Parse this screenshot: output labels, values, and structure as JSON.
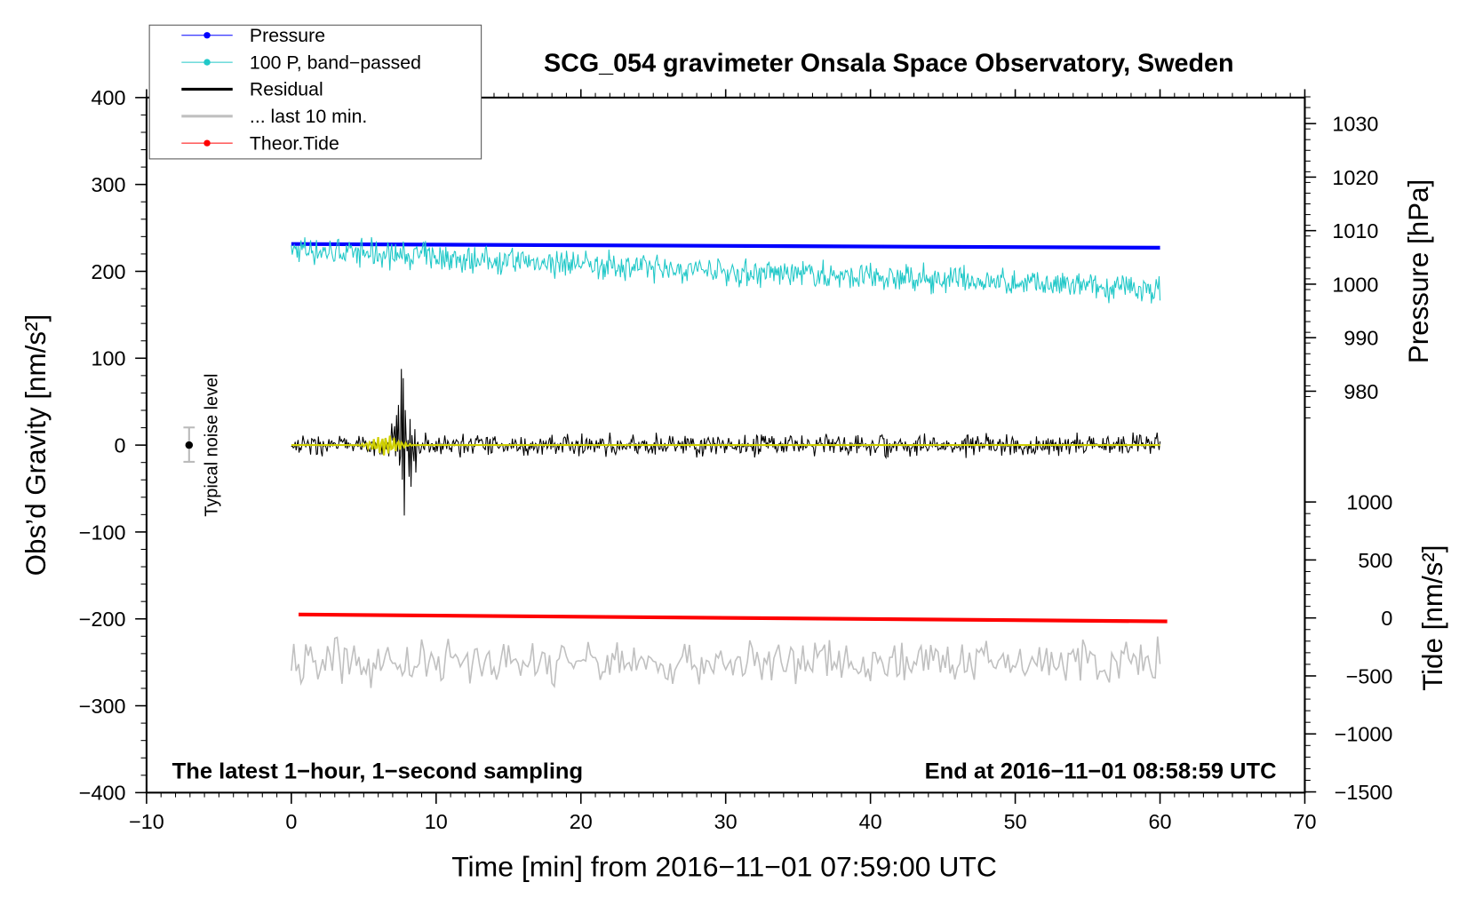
{
  "chart_data": {
    "type": "line",
    "title": "SCG_054 gravimeter Onsala Space Observatory, Sweden",
    "xlabel": "Time [min] from 2016−11−01 07:59:00 UTC",
    "ylabel_left": "Obs’d Gravity [nm/s²]",
    "ylabel_right_top": "Pressure [hPa]",
    "ylabel_right_bottom": "Tide [nm/s²]",
    "xlim": [
      -10,
      70
    ],
    "ylim_left": [
      -400,
      400
    ],
    "x_ticks": [
      "−10",
      "0",
      "10",
      "20",
      "30",
      "40",
      "50",
      "60",
      "70"
    ],
    "x_tick_values": [
      -10,
      0,
      10,
      20,
      30,
      40,
      50,
      60,
      70
    ],
    "left_ticks": [
      "400",
      "300",
      "200",
      "100",
      "0",
      "−100",
      "−200",
      "−300",
      "−400"
    ],
    "left_tick_values": [
      400,
      300,
      200,
      100,
      0,
      -100,
      -200,
      -300,
      -400
    ],
    "pressure_ticks": [
      "1030",
      "1020",
      "1010",
      "1000",
      "990",
      "980"
    ],
    "pressure_tick_values": [
      1030,
      1020,
      1010,
      1000,
      990,
      980
    ],
    "tide_ticks": [
      "1000",
      "500",
      "0",
      "−500",
      "−1000",
      "−1500"
    ],
    "tide_tick_values": [
      1000,
      500,
      0,
      -500,
      -1000,
      -1500
    ],
    "annotations": {
      "bottom_left": "The latest 1−hour, 1−second sampling",
      "bottom_right": "End at 2016−11−01 08:58:59 UTC",
      "noise_label": "Typical noise level"
    },
    "legend": {
      "placement": "top-left",
      "entries": [
        {
          "label": "Pressure",
          "color": "#0000ff"
        },
        {
          "label": "100 P, band−passed",
          "color": "#20c8c8"
        },
        {
          "label": "Residual",
          "color": "#000000"
        },
        {
          "label": "... last 10 min.",
          "color": "#c0c0c0"
        },
        {
          "label": "Theor.Tide",
          "color": "#ff0000"
        }
      ]
    },
    "series": [
      {
        "name": "Pressure",
        "axis": "pressure",
        "x": [
          0,
          60
        ],
        "values": [
          1007.5,
          1006.8
        ],
        "color": "#0000ff"
      },
      {
        "name": "100 P, band-passed",
        "axis": "left",
        "x": [
          0,
          15,
          30,
          45,
          60
        ],
        "values": [
          225,
          212,
          200,
          190,
          178
        ],
        "noise_amplitude": 15,
        "color": "#20c8c8"
      },
      {
        "name": "Residual",
        "axis": "left",
        "x": [
          0,
          60
        ],
        "values": [
          0,
          0
        ],
        "noise_amplitude": 12,
        "event": {
          "x": 7.8,
          "peak": 140
        },
        "color": "#000000"
      },
      {
        "name": "Residual filtered",
        "axis": "left",
        "x": [
          0,
          60
        ],
        "values": [
          0,
          0
        ],
        "event": {
          "x": 6.5,
          "peak": 12
        },
        "color": "#d0d000"
      },
      {
        "name": "... last 10 min.",
        "axis": "left",
        "x": [
          0,
          60
        ],
        "values": [
          -250,
          -250
        ],
        "noise_amplitude": 25,
        "color": "#c0c0c0"
      },
      {
        "name": "Theor.Tide",
        "axis": "tide",
        "x": [
          0.5,
          60.5
        ],
        "values": [
          30,
          -30
        ],
        "color": "#ff0000"
      }
    ]
  }
}
